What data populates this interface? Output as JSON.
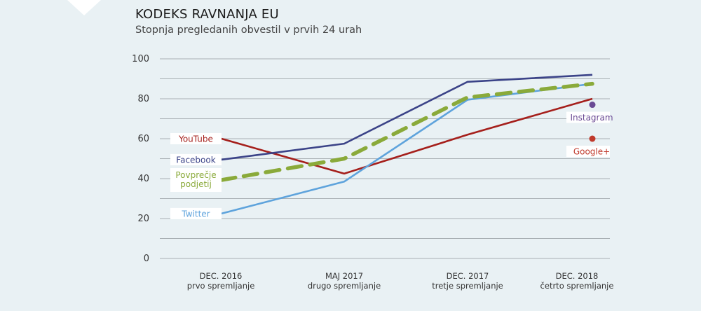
{
  "header": {
    "title": "KODEKS RAVNANJA EU",
    "subtitle": "Stopnja pregledanih obvestil v prvih 24 urah"
  },
  "chart_data": {
    "type": "line",
    "title": "KODEKS RAVNANJA EU",
    "subtitle": "Stopnja pregledanih obvestil v prvih 24 urah",
    "categories": [
      {
        "line1": "DEC. 2016",
        "line2": "prvo spremljanje"
      },
      {
        "line1": "MAJ 2017",
        "line2": "drugo spremljanje"
      },
      {
        "line1": "DEC. 2017",
        "line2": "tretje spremljanje"
      },
      {
        "line1": "DEC. 2018",
        "line2": "četrto spremljanje"
      }
    ],
    "ylim": [
      0,
      100
    ],
    "yticks": [
      "0",
      "20",
      "40",
      "60",
      "80",
      "100"
    ],
    "grid": true,
    "series": [
      {
        "name": "YouTube",
        "color": "#a51f1b",
        "values": [
          60,
          42.5,
          62,
          80
        ]
      },
      {
        "name": "Facebook",
        "color": "#3b4388",
        "values": [
          49.5,
          57.5,
          88.5,
          92
        ]
      },
      {
        "name": "Povprečje podjetij",
        "label_lines": [
          "Povprečje",
          "podjetij"
        ],
        "color": "#8aaa3a",
        "dashed": true,
        "values": [
          39.3,
          50,
          80.7,
          87.5
        ]
      },
      {
        "name": "Twitter",
        "color": "#5ea3dc",
        "values": [
          22.5,
          38.5,
          79.5,
          87.5
        ]
      }
    ],
    "points": [
      {
        "name": "Instagram",
        "color": "#6a4a94",
        "category": 3,
        "value": 77
      },
      {
        "name": "Google+",
        "color": "#c0392b",
        "category": 3,
        "value": 60
      }
    ]
  }
}
